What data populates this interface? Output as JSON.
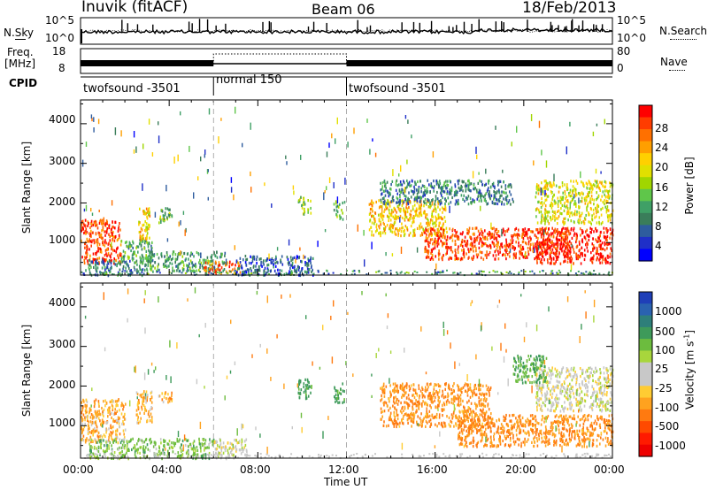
{
  "header": {
    "station": "Inuvik (fitACF)",
    "beam": "Beam 06",
    "date": "18/Feb/2013"
  },
  "strips": {
    "nsky": {
      "label": "N.Sky",
      "ticks": [
        "10^5",
        "10^0"
      ]
    },
    "nsearch": {
      "label": "N.Search",
      "ticks": [
        "10^5",
        "10^0"
      ]
    },
    "freq": {
      "label_top": "Freq.",
      "label_bottom": "[MHz]",
      "ticks": [
        "18",
        "8"
      ]
    },
    "nave": {
      "label": "Nave",
      "ticks": [
        "80",
        "0"
      ]
    },
    "cpid": {
      "label": "CPID",
      "segments": [
        {
          "name": "twofsound -3501",
          "start_hour": 0,
          "end_hour": 6
        },
        {
          "name": "normal 150",
          "start_hour": 6,
          "end_hour": 12
        },
        {
          "name": "twofsound -3501",
          "start_hour": 12,
          "end_hour": 24
        }
      ]
    }
  },
  "colorbars": {
    "power": {
      "title": "Power [dB]",
      "ticks": [
        "28",
        "24",
        "20",
        "16",
        "12",
        "8",
        "4"
      ],
      "colors": [
        "#ff0000",
        "#ff3c00",
        "#ff7000",
        "#ff9f00",
        "#ffd000",
        "#e1e000",
        "#a0d600",
        "#5fc64a",
        "#3fa066",
        "#3a7d5a",
        "#2e5c9e",
        "#1f2fc8",
        "#0000ff"
      ]
    },
    "velocity": {
      "title": "Velocity [m s",
      "title_sup": "-1",
      "title_end": "]",
      "ticks": [
        "1000",
        "500",
        "100",
        "25",
        "-25",
        "-100",
        "-500",
        "-1000"
      ],
      "colors": [
        "#1f3fb8",
        "#2a62b0",
        "#2e7f7a",
        "#3e9a5a",
        "#6cbc3e",
        "#a8d63c",
        "#c8c8c8",
        "#c8c8c8",
        "#ffcc33",
        "#ffa21f",
        "#ff7a10",
        "#ff4a00",
        "#ff1a00",
        "#ee0000"
      ]
    }
  },
  "chart_data": [
    {
      "type": "heatmap",
      "title": "Power",
      "ylabel": "Slant Range [km]",
      "xlabel": "Time UT",
      "x_ticks": [
        "00:00",
        "04:00",
        "08:00",
        "12:00",
        "16:00",
        "20:00",
        "00:00"
      ],
      "y_ticks": [
        "1000",
        "2000",
        "3000",
        "4000"
      ],
      "xlim_hours": [
        0,
        24
      ],
      "ylim_km": [
        180,
        4600
      ],
      "colorbar": "Power [dB]",
      "regions": [
        {
          "t0": 0.0,
          "t1": 1.8,
          "r0": 500,
          "r1": 1600,
          "value": 26
        },
        {
          "t0": 1.8,
          "t1": 3.2,
          "r0": 500,
          "r1": 1100,
          "value": 12
        },
        {
          "t0": 2.6,
          "t1": 3.1,
          "r0": 1100,
          "r1": 1900,
          "value": 20
        },
        {
          "t0": 3.5,
          "t1": 4.1,
          "r0": 1500,
          "r1": 1900,
          "value": 14
        },
        {
          "t0": 0.2,
          "t1": 3.0,
          "r0": 200,
          "r1": 600,
          "value": 10
        },
        {
          "t0": 3.0,
          "t1": 6.5,
          "r0": 300,
          "r1": 800,
          "value": 12
        },
        {
          "t0": 5.5,
          "t1": 7.2,
          "r0": 250,
          "r1": 550,
          "value": 24
        },
        {
          "t0": 7.0,
          "t1": 10.5,
          "r0": 200,
          "r1": 700,
          "value": 8
        },
        {
          "t0": 9.8,
          "t1": 10.4,
          "r0": 1700,
          "r1": 2200,
          "value": 16
        },
        {
          "t0": 11.4,
          "t1": 11.9,
          "r0": 1600,
          "r1": 2100,
          "value": 14
        },
        {
          "t0": 13.0,
          "t1": 16.5,
          "r0": 1200,
          "r1": 2100,
          "value": 20
        },
        {
          "t0": 15.5,
          "t1": 22.0,
          "r0": 600,
          "r1": 1400,
          "value": 26
        },
        {
          "t0": 20.5,
          "t1": 24.0,
          "r0": 500,
          "r1": 1400,
          "value": 28
        },
        {
          "t0": 20.5,
          "t1": 24.0,
          "r0": 1500,
          "r1": 2600,
          "value": 18
        },
        {
          "t0": 13.5,
          "t1": 19.5,
          "r0": 2000,
          "r1": 2600,
          "value": 10
        }
      ]
    },
    {
      "type": "heatmap",
      "title": "Velocity",
      "ylabel": "Slant Range [km]",
      "xlabel": "Time UT",
      "x_ticks": [
        "00:00",
        "04:00",
        "08:00",
        "12:00",
        "16:00",
        "20:00",
        "00:00"
      ],
      "y_ticks": [
        "1000",
        "2000",
        "3000",
        "4000"
      ],
      "xlim_hours": [
        0,
        24
      ],
      "ylim_km": [
        180,
        4600
      ],
      "colorbar": "Velocity [m s-1]",
      "regions": [
        {
          "t0": 0.0,
          "t1": 2.0,
          "r0": 600,
          "r1": 1700,
          "value": -100
        },
        {
          "t0": 2.5,
          "t1": 3.2,
          "r0": 1100,
          "r1": 1900,
          "value": -100
        },
        {
          "t0": 3.5,
          "t1": 4.1,
          "r0": 1600,
          "r1": 1900,
          "value": -100
        },
        {
          "t0": 0.3,
          "t1": 6.0,
          "r0": 200,
          "r1": 700,
          "value": 100
        },
        {
          "t0": 6.0,
          "t1": 7.5,
          "r0": 200,
          "r1": 700,
          "value": 0
        },
        {
          "t0": 9.8,
          "t1": 10.4,
          "r0": 1700,
          "r1": 2200,
          "value": 200
        },
        {
          "t0": 11.4,
          "t1": 11.9,
          "r0": 1600,
          "r1": 2100,
          "value": 200
        },
        {
          "t0": 13.5,
          "t1": 18.5,
          "r0": 1000,
          "r1": 2100,
          "value": -150
        },
        {
          "t0": 17.0,
          "t1": 24.0,
          "r0": 500,
          "r1": 1300,
          "value": -150
        },
        {
          "t0": 20.5,
          "t1": 24.0,
          "r0": 1400,
          "r1": 2500,
          "value": 0
        },
        {
          "t0": 19.5,
          "t1": 21.0,
          "r0": 2100,
          "r1": 2800,
          "value": 150
        }
      ]
    }
  ]
}
